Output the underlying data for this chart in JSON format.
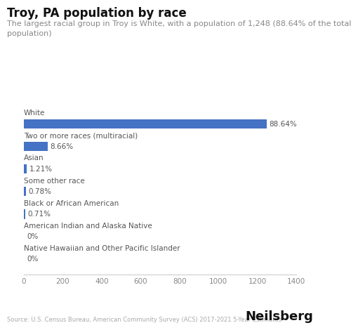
{
  "title": "Troy, PA population by race",
  "subtitle": "The largest racial group in Troy is White, with a population of 1,248 (88.64% of the total\npopulation)",
  "categories": [
    "White",
    "Two or more races (multiracial)",
    "Asian",
    "Some other race",
    "Black or African American",
    "American Indian and Alaska Native",
    "Native Hawaiian and Other Pacific Islander"
  ],
  "values": [
    1248,
    122,
    17,
    11,
    10,
    0,
    0
  ],
  "percentages": [
    "88.64%",
    "8.66%",
    "1.21%",
    "0.78%",
    "0.71%",
    "0%",
    "0%"
  ],
  "bar_color": "#4472C4",
  "xlim": [
    0,
    1400
  ],
  "xticks": [
    0,
    200,
    400,
    600,
    800,
    1000,
    1200,
    1400
  ],
  "source": "Source: U.S. Census Bureau, American Community Survey (ACS) 2017-2021 5-Year Estimates",
  "brand": "Neilsberg",
  "background_color": "#ffffff",
  "title_fontsize": 12,
  "subtitle_fontsize": 8,
  "label_fontsize": 7.5,
  "tick_fontsize": 7.5,
  "bar_height": 0.42
}
